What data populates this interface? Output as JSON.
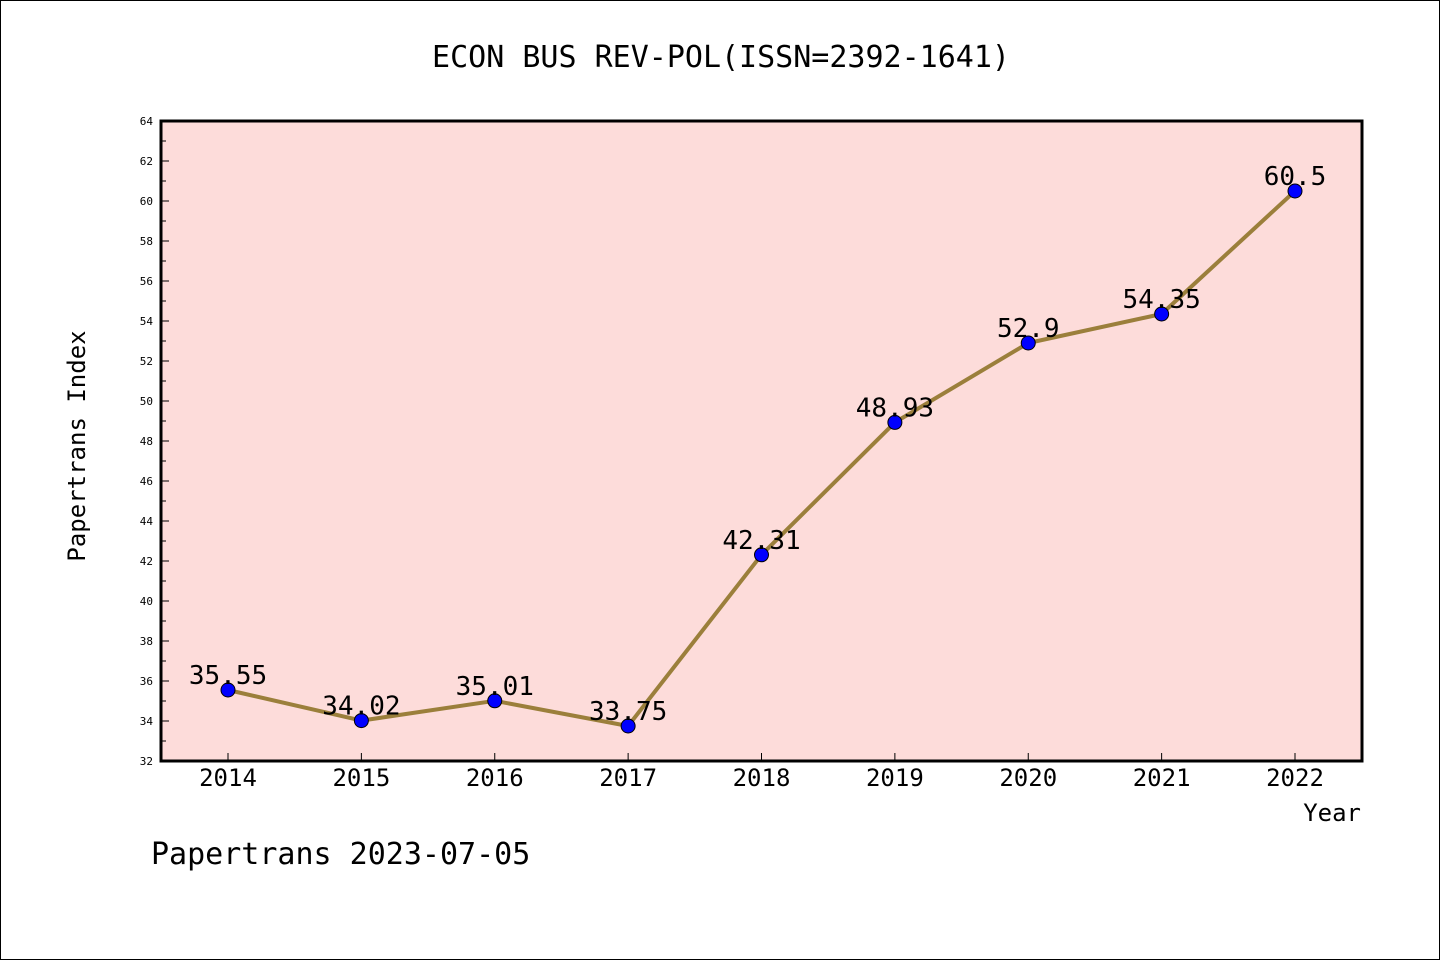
{
  "chart_data": {
    "type": "line",
    "title": "ECON BUS REV-POL(ISSN=2392-1641)",
    "xlabel": "Year",
    "ylabel": "Papertrans Index",
    "categories": [
      "2014",
      "2015",
      "2016",
      "2017",
      "2018",
      "2019",
      "2020",
      "2021",
      "2022"
    ],
    "values": [
      35.55,
      34.02,
      35.01,
      33.75,
      42.31,
      48.93,
      52.9,
      54.35,
      60.5
    ],
    "data_labels": [
      "35.55",
      "34.02",
      "35.01",
      "33.75",
      "42.31",
      "48.93",
      "52.9",
      "54.35",
      "60.5"
    ],
    "ylim": [
      32,
      64
    ],
    "yticks": [
      "32",
      "34",
      "36",
      "38",
      "40",
      "42",
      "44",
      "46",
      "48",
      "50",
      "52",
      "54",
      "56",
      "58",
      "60",
      "62",
      "64"
    ],
    "grid": false,
    "legend": "none",
    "colors": {
      "plot_background": "#fddcda",
      "line": "#9b7f3b",
      "marker": "#0000ff"
    }
  },
  "footer": {
    "text": "Papertrans 2023-07-05"
  }
}
